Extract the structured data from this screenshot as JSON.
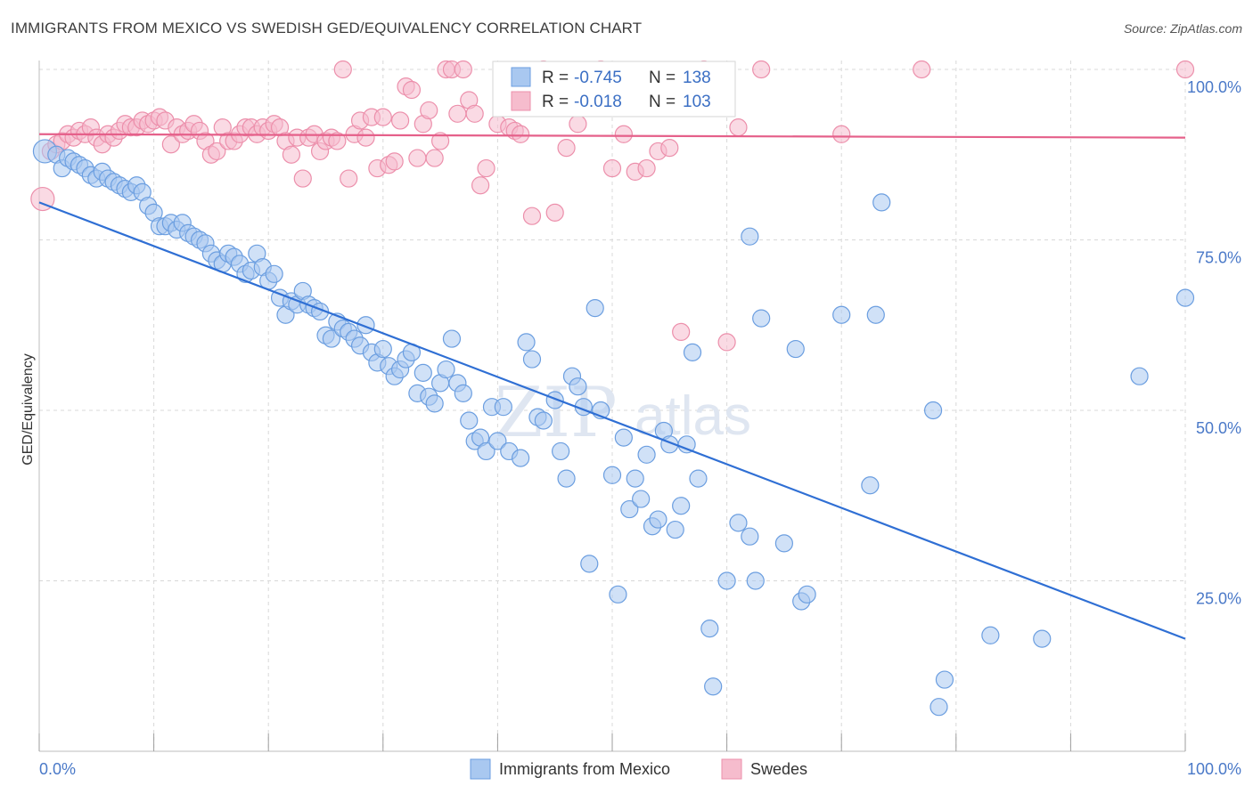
{
  "header": {
    "title": "IMMIGRANTS FROM MEXICO VS SWEDISH GED/EQUIVALENCY CORRELATION CHART",
    "source": "Source: ZipAtlas.com"
  },
  "watermark": {
    "zip": "ZIP",
    "atlas": "atlas"
  },
  "legend": {
    "rows": [
      {
        "r_label": "R =",
        "r_value": "-0.745",
        "n_label": "N =",
        "n_value": "138"
      },
      {
        "r_label": "R =",
        "r_value": "-0.018",
        "n_label": "N =",
        "n_value": "103"
      }
    ]
  },
  "bottom_legend": [
    {
      "label": "Immigrants from Mexico"
    },
    {
      "label": "Swedes"
    }
  ],
  "colors": {
    "blue_fill": "#a9c8f0",
    "blue_stroke": "#6b9ee0",
    "blue_line": "#2f6fd4",
    "pink_fill": "#f6bccd",
    "pink_stroke": "#ec8fab",
    "pink_line": "#e5608a",
    "grid": "#d8d8d8",
    "tick_text": "#4a79c8"
  },
  "chart_data": {
    "type": "scatter",
    "title": "IMMIGRANTS FROM MEXICO VS SWEDISH GED/EQUIVALENCY CORRELATION CHART",
    "xlabel": "",
    "ylabel": "GED/Equivalency",
    "xlim": [
      0,
      100
    ],
    "ylim": [
      0,
      100
    ],
    "x_tick_labels": [
      "0.0%",
      "100.0%"
    ],
    "y_tick_labels": [
      "100.0%",
      "75.0%",
      "50.0%",
      "25.0%"
    ],
    "y_tick_values": [
      100,
      75,
      50,
      25
    ],
    "grid": true,
    "legend_position": "top-center",
    "series": [
      {
        "name": "Immigrants from Mexico",
        "color": "#a9c8f0",
        "r": -0.745,
        "n": 138,
        "trend": {
          "x": [
            0,
            100
          ],
          "y": [
            80.5,
            16.5
          ]
        },
        "points": [
          [
            0.5,
            88
          ],
          [
            1.5,
            87.5
          ],
          [
            2,
            85.5
          ],
          [
            2.5,
            87
          ],
          [
            3,
            86.5
          ],
          [
            3.5,
            86
          ],
          [
            4,
            85.5
          ],
          [
            4.5,
            84.5
          ],
          [
            5,
            84
          ],
          [
            5.5,
            85
          ],
          [
            6,
            84
          ],
          [
            6.5,
            83.5
          ],
          [
            7,
            83
          ],
          [
            7.5,
            82.5
          ],
          [
            8,
            82
          ],
          [
            8.5,
            83
          ],
          [
            9,
            82
          ],
          [
            9.5,
            80
          ],
          [
            10,
            79
          ],
          [
            10.5,
            77
          ],
          [
            11,
            77
          ],
          [
            11.5,
            77.5
          ],
          [
            12,
            76.5
          ],
          [
            12.5,
            77.5
          ],
          [
            13,
            76
          ],
          [
            13.5,
            75.5
          ],
          [
            14,
            75
          ],
          [
            14.5,
            74.5
          ],
          [
            15,
            73
          ],
          [
            15.5,
            72
          ],
          [
            16,
            71.5
          ],
          [
            16.5,
            73
          ],
          [
            17,
            72.5
          ],
          [
            17.5,
            71.5
          ],
          [
            18,
            70
          ],
          [
            18.5,
            70.5
          ],
          [
            19,
            73
          ],
          [
            19.5,
            71
          ],
          [
            20,
            69
          ],
          [
            20.5,
            70
          ],
          [
            21,
            66.5
          ],
          [
            21.5,
            64
          ],
          [
            22,
            66
          ],
          [
            22.5,
            65.5
          ],
          [
            23,
            67.5
          ],
          [
            23.5,
            65.5
          ],
          [
            24,
            65
          ],
          [
            24.5,
            64.5
          ],
          [
            25,
            61
          ],
          [
            25.5,
            60.5
          ],
          [
            26,
            63
          ],
          [
            26.5,
            62
          ],
          [
            27,
            61.5
          ],
          [
            27.5,
            60.5
          ],
          [
            28,
            59.5
          ],
          [
            28.5,
            62.5
          ],
          [
            29,
            58.5
          ],
          [
            29.5,
            57
          ],
          [
            30,
            59
          ],
          [
            30.5,
            56.5
          ],
          [
            31,
            55
          ],
          [
            31.5,
            56
          ],
          [
            32,
            57.5
          ],
          [
            32.5,
            58.5
          ],
          [
            33,
            52.5
          ],
          [
            33.5,
            55.5
          ],
          [
            34,
            52
          ],
          [
            34.5,
            51
          ],
          [
            35,
            54
          ],
          [
            35.5,
            56
          ],
          [
            36,
            60.5
          ],
          [
            36.5,
            54
          ],
          [
            37,
            52.5
          ],
          [
            37.5,
            48.5
          ],
          [
            38,
            45.5
          ],
          [
            38.5,
            46
          ],
          [
            39,
            44
          ],
          [
            39.5,
            50.5
          ],
          [
            40,
            45.5
          ],
          [
            40.5,
            50.5
          ],
          [
            41,
            44
          ],
          [
            42,
            43
          ],
          [
            42.5,
            60
          ],
          [
            43,
            57.5
          ],
          [
            43.5,
            49
          ],
          [
            44,
            48.5
          ],
          [
            45,
            51.5
          ],
          [
            45.5,
            44
          ],
          [
            46,
            40
          ],
          [
            46.5,
            55
          ],
          [
            47,
            53.5
          ],
          [
            47.5,
            50.5
          ],
          [
            48,
            27.5
          ],
          [
            48.5,
            65
          ],
          [
            49,
            50
          ],
          [
            50,
            40.5
          ],
          [
            50.5,
            23
          ],
          [
            51,
            46
          ],
          [
            51.5,
            35.5
          ],
          [
            52,
            40
          ],
          [
            52.5,
            37
          ],
          [
            53,
            43.5
          ],
          [
            53.5,
            33
          ],
          [
            54,
            34
          ],
          [
            54.5,
            47
          ],
          [
            55,
            45
          ],
          [
            55.5,
            32.5
          ],
          [
            56,
            36
          ],
          [
            56.5,
            45
          ],
          [
            57,
            58.5
          ],
          [
            57.5,
            40
          ],
          [
            58.5,
            18
          ],
          [
            58.8,
            9.5
          ],
          [
            60,
            25
          ],
          [
            61,
            33.5
          ],
          [
            62,
            31.5
          ],
          [
            62.5,
            25
          ],
          [
            63,
            63.5
          ],
          [
            65,
            30.5
          ],
          [
            66,
            59
          ],
          [
            66.5,
            22
          ],
          [
            67,
            23
          ],
          [
            70,
            64
          ],
          [
            72.5,
            39
          ],
          [
            73,
            64
          ],
          [
            73.5,
            80.5
          ],
          [
            78,
            50
          ],
          [
            78.5,
            6.5
          ],
          [
            79,
            10.5
          ],
          [
            83,
            17
          ],
          [
            87.5,
            16.5
          ],
          [
            96,
            55
          ],
          [
            100,
            66.5
          ],
          [
            62,
            75.5
          ]
        ]
      },
      {
        "name": "Swedes",
        "color": "#f6bccd",
        "r": -0.018,
        "n": 103,
        "trend": {
          "x": [
            0,
            100
          ],
          "y": [
            90.5,
            90
          ]
        },
        "points": [
          [
            0.3,
            81
          ],
          [
            1,
            88
          ],
          [
            1.5,
            89
          ],
          [
            2,
            89.5
          ],
          [
            2.5,
            90.5
          ],
          [
            3,
            90
          ],
          [
            3.5,
            91
          ],
          [
            4,
            90.5
          ],
          [
            4.5,
            91.5
          ],
          [
            5,
            90
          ],
          [
            5.5,
            89
          ],
          [
            6,
            90.5
          ],
          [
            6.5,
            90
          ],
          [
            7,
            91
          ],
          [
            7.5,
            92
          ],
          [
            8,
            91.5
          ],
          [
            8.5,
            91.5
          ],
          [
            9,
            92.5
          ],
          [
            9.5,
            92
          ],
          [
            10,
            92.5
          ],
          [
            10.5,
            93
          ],
          [
            11,
            92.5
          ],
          [
            11.5,
            89
          ],
          [
            12,
            91.5
          ],
          [
            12.5,
            90.5
          ],
          [
            13,
            91
          ],
          [
            13.5,
            92
          ],
          [
            14,
            91
          ],
          [
            14.5,
            89.5
          ],
          [
            15,
            87.5
          ],
          [
            15.5,
            88
          ],
          [
            16,
            91.5
          ],
          [
            16.5,
            89.5
          ],
          [
            17,
            89.5
          ],
          [
            17.5,
            90.5
          ],
          [
            18,
            91.5
          ],
          [
            18.5,
            91.5
          ],
          [
            19,
            90.5
          ],
          [
            19.5,
            91.5
          ],
          [
            20,
            91
          ],
          [
            20.5,
            92
          ],
          [
            21,
            91.5
          ],
          [
            21.5,
            89.5
          ],
          [
            22,
            87.5
          ],
          [
            22.5,
            90
          ],
          [
            23,
            84
          ],
          [
            23.5,
            90
          ],
          [
            24,
            90.5
          ],
          [
            24.5,
            88
          ],
          [
            25,
            89.5
          ],
          [
            25.5,
            90
          ],
          [
            26,
            89.5
          ],
          [
            26.5,
            100
          ],
          [
            27,
            84
          ],
          [
            27.5,
            90.5
          ],
          [
            28,
            92.5
          ],
          [
            28.5,
            90
          ],
          [
            29,
            93
          ],
          [
            29.5,
            85.5
          ],
          [
            30,
            93
          ],
          [
            30.5,
            86
          ],
          [
            31,
            86.5
          ],
          [
            31.5,
            92.5
          ],
          [
            32,
            97.5
          ],
          [
            32.5,
            97
          ],
          [
            33,
            87
          ],
          [
            33.5,
            92
          ],
          [
            34,
            94
          ],
          [
            34.5,
            87
          ],
          [
            35,
            89.5
          ],
          [
            35.5,
            100
          ],
          [
            36,
            100
          ],
          [
            36.5,
            93.5
          ],
          [
            37,
            100
          ],
          [
            37.5,
            95.5
          ],
          [
            38,
            93.5
          ],
          [
            38.5,
            83
          ],
          [
            39,
            85.5
          ],
          [
            40,
            92
          ],
          [
            41,
            91.5
          ],
          [
            41.5,
            91
          ],
          [
            42,
            90.5
          ],
          [
            43,
            78.5
          ],
          [
            44,
            100
          ],
          [
            45,
            79
          ],
          [
            46,
            88.5
          ],
          [
            47,
            92
          ],
          [
            49,
            100
          ],
          [
            50,
            85.5
          ],
          [
            51,
            90.5
          ],
          [
            52,
            85
          ],
          [
            53,
            85.5
          ],
          [
            54,
            88
          ],
          [
            55,
            88.5
          ],
          [
            56,
            61.5
          ],
          [
            58,
            100
          ],
          [
            60,
            60
          ],
          [
            61,
            91.5
          ],
          [
            63,
            100
          ],
          [
            70,
            90.5
          ],
          [
            77,
            100
          ],
          [
            100,
            100
          ]
        ]
      }
    ]
  }
}
